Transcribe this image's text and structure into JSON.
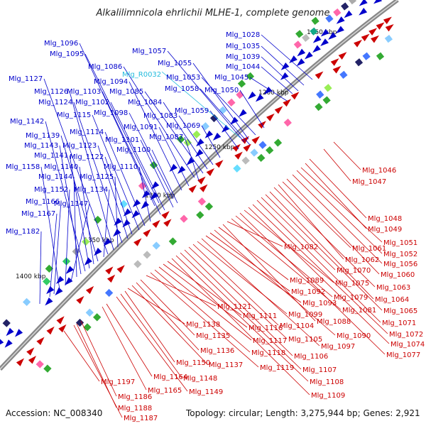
{
  "title": "Alkalilimnicola ehrlichii MLHE-1, complete genome",
  "accession": "Accession: NC_008340",
  "topology": "Topology: circular; Length: 3,275,944 bp; Genes: 2,921",
  "colors": {
    "forward": "#0000cc",
    "reverse": "#cc0000",
    "rna": "#22bbdd",
    "ring": "#8a8a8a"
  },
  "scale_labels": [
    "1150 kbp",
    "1200 kbp",
    "1250 kbp",
    "1300 kbp",
    "1350 kbp",
    "1400 kbp"
  ],
  "blue_labels": [
    "Mlg_1028",
    "Mlg_1035",
    "Mlg_1039",
    "Mlg_1044",
    "Mlg_1045",
    "Mlg_1050",
    "Mlg_1053",
    "Mlg_1055",
    "Mlg_1057",
    "Mlg_1058",
    "Mlg_1059",
    "Mlg_1069",
    "Mlg_1083",
    "Mlg_1084",
    "Mlg_1085",
    "Mlg_1086",
    "Mlg_1087",
    "Mlg_1091",
    "Mlg_1094",
    "Mlg_1095",
    "Mlg_1096",
    "Mlg_1098",
    "Mlg_1100",
    "Mlg_1101",
    "Mlg_1102",
    "Mlg_1103",
    "Mlg_1110",
    "Mlg_1114",
    "Mlg_1115",
    "Mlg_1122",
    "Mlg_1123",
    "Mlg_1124",
    "Mlg_1125",
    "Mlg_1126",
    "Mlg_1127",
    "Mlg_1134",
    "Mlg_1139",
    "Mlg_1140",
    "Mlg_1141",
    "Mlg_1142",
    "Mlg_1143",
    "Mlg_1144",
    "Mlg_1147",
    "Mlg_1152",
    "Mlg_1158",
    "Mlg_1166",
    "Mlg_1167",
    "Mlg_1182"
  ],
  "rna_labels": [
    "Mlg_R0032"
  ],
  "red_labels": [
    "Mlg_1046",
    "Mlg_1047",
    "Mlg_1048",
    "Mlg_1049",
    "Mlg_1051",
    "Mlg_1052",
    "Mlg_1056",
    "Mlg_1060",
    "Mlg_1061",
    "Mlg_1062",
    "Mlg_1063",
    "Mlg_1064",
    "Mlg_1065",
    "Mlg_1070",
    "Mlg_1071",
    "Mlg_1072",
    "Mlg_1074",
    "Mlg_1075",
    "Mlg_1077",
    "Mlg_1079",
    "Mlg_1081",
    "Mlg_1082",
    "Mlg_1088",
    "Mlg_1089",
    "Mlg_1090",
    "Mlg_1092",
    "Mlg_1093",
    "Mlg_1097",
    "Mlg_1099",
    "Mlg_1104",
    "Mlg_1105",
    "Mlg_1106",
    "Mlg_1107",
    "Mlg_1108",
    "Mlg_1109",
    "Mlg_1111",
    "Mlg_1116",
    "Mlg_1117",
    "Mlg_1118",
    "Mlg_1119",
    "Mlg_1121",
    "Mlg_1135",
    "Mlg_1136",
    "Mlg_1137",
    "Mlg_1138",
    "Mlg_1148",
    "Mlg_1149",
    "Mlg_1150",
    "Mlg_1164",
    "Mlg_1165",
    "Mlg_1186",
    "Mlg_1187",
    "Mlg_1188",
    "Mlg_1197"
  ]
}
